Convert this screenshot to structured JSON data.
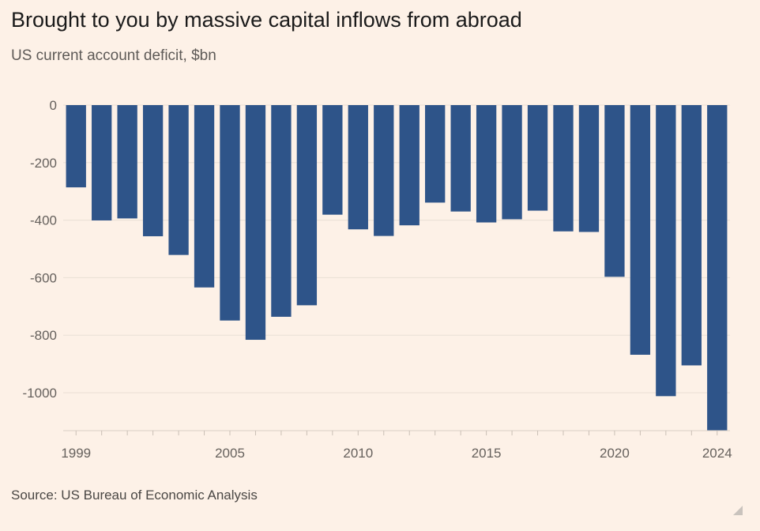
{
  "title": "Brought to you by massive capital inflows from abroad",
  "subtitle": "US current account deficit, $bn",
  "source": "Source: US Bureau of Economic Analysis",
  "chart_data": {
    "type": "bar",
    "title": "Brought to you by massive capital inflows from abroad",
    "subtitle": "US current account deficit, $bn",
    "xlabel": "",
    "ylabel": "",
    "categories": [
      1999,
      2000,
      2001,
      2002,
      2003,
      2004,
      2005,
      2006,
      2007,
      2008,
      2009,
      2010,
      2011,
      2012,
      2013,
      2014,
      2015,
      2016,
      2017,
      2018,
      2019,
      2020,
      2021,
      2022,
      2023,
      2024
    ],
    "values": [
      -286,
      -401,
      -394,
      -456,
      -521,
      -634,
      -749,
      -816,
      -736,
      -696,
      -381,
      -432,
      -455,
      -418,
      -339,
      -370,
      -408,
      -397,
      -367,
      -439,
      -441,
      -597,
      -868,
      -1012,
      -905,
      -1133
    ],
    "ylim": [
      -1133,
      0
    ],
    "yticks": [
      0,
      -200,
      -400,
      -600,
      -800,
      -1000
    ],
    "ytick_labels": [
      "0",
      "-200",
      "-400",
      "-600",
      "-800",
      "-1000"
    ],
    "xtick_labels": [
      "1999",
      "2005",
      "2010",
      "2015",
      "2020",
      "2024"
    ],
    "bar_color": "#2e5489",
    "grid": true,
    "legend": "none"
  }
}
